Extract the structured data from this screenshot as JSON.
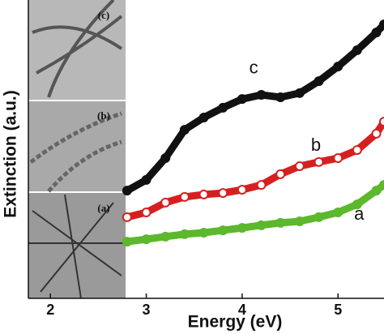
{
  "chart_data": {
    "type": "line",
    "xlabel": "Energy (eV)",
    "ylabel": "Extinction (a.u.)",
    "x": [
      2.8,
      3.0,
      3.2,
      3.4,
      3.6,
      3.8,
      4.0,
      4.2,
      4.4,
      4.6,
      4.8,
      5.0,
      5.2,
      5.4,
      5.48
    ],
    "series": [
      {
        "name": "a",
        "color": "#5cb82c",
        "values": [
          19,
          19.8,
          20.7,
          21.5,
          22,
          22.8,
          23.6,
          24.5,
          25.3,
          25.8,
          27.2,
          28.8,
          31.5,
          36.1,
          38
        ]
      },
      {
        "name": "b",
        "color": "#d62020",
        "values": [
          27.2,
          28.8,
          32.1,
          34,
          34.8,
          35.3,
          36.4,
          38,
          41.6,
          44.3,
          45.7,
          47,
          49.7,
          55.2,
          59.2
        ]
      },
      {
        "name": "c",
        "color": "#111111",
        "values": [
          36.1,
          39.7,
          47,
          56.5,
          60.6,
          63.9,
          66.8,
          68.2,
          67.4,
          68.8,
          72.8,
          77.7,
          83.2,
          89.1,
          91.8
        ]
      }
    ],
    "xlim": [
      1.77,
      5.48
    ],
    "xticks": [
      2,
      3,
      4,
      5
    ],
    "ylim": [
      0,
      100
    ],
    "insets": [
      "(c)",
      "(b)",
      "(a)"
    ]
  }
}
